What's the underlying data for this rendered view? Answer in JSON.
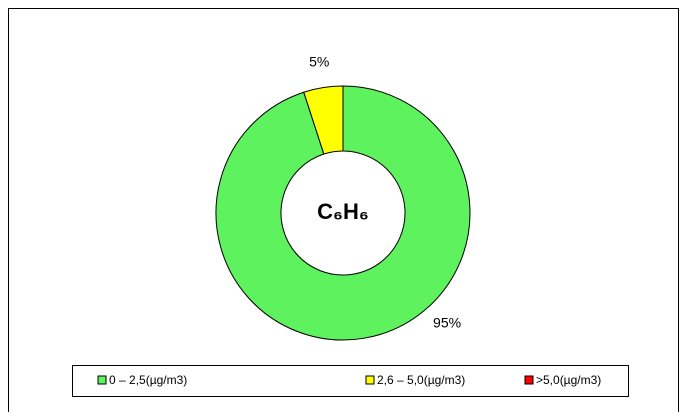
{
  "chart_data": {
    "type": "donut",
    "center_label": "C₆H₆",
    "categories": [
      "0 – 2,5(µg/m3)",
      "2,6 – 5,0(µg/m3)",
      ">5,0(µg/m3)"
    ],
    "values": [
      95,
      5,
      0
    ],
    "value_labels": [
      "95%",
      "5%",
      null
    ],
    "colors": [
      "#5ef25e",
      "#ffff00",
      "#ff0000"
    ],
    "legend": "bottom"
  }
}
